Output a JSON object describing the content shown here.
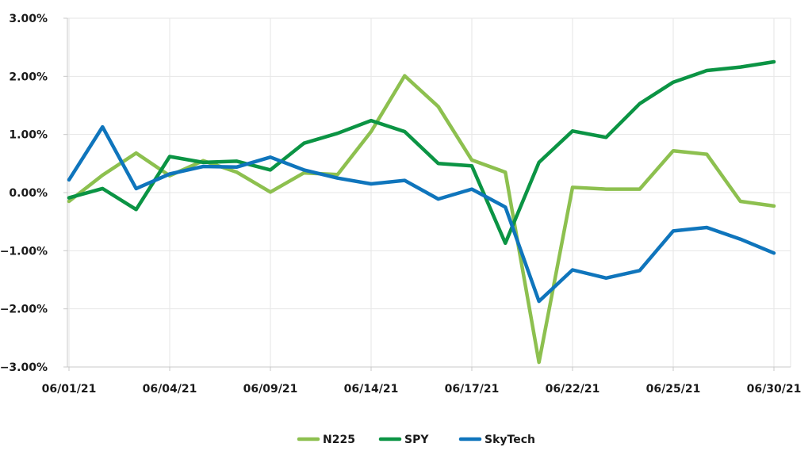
{
  "chart_data": {
    "type": "line",
    "title": "",
    "xlabel": "",
    "ylabel": "",
    "ylim": [
      -3.0,
      3.0
    ],
    "yticks": [
      3.0,
      2.0,
      1.0,
      0.0,
      -1.0,
      -2.0,
      -3.0
    ],
    "ytick_labels": [
      "3.00%",
      "2.00%",
      "1.00%",
      "0.00%",
      "−1.00%",
      "−2.00%",
      "−3.00%"
    ],
    "x_count": 22,
    "x_tick_positions": [
      0,
      3,
      6,
      9,
      12,
      15,
      18,
      21
    ],
    "x_tick_labels": [
      "06/01/21",
      "06/04/21",
      "06/09/21",
      "06/14/21",
      "06/17/21",
      "06/22/21",
      "06/25/21",
      "06/30/21"
    ],
    "grid": true,
    "legend_position": "bottom",
    "series": [
      {
        "name": "N225",
        "color": "#8dc04f",
        "values": [
          -0.15,
          0.3,
          0.68,
          0.29,
          0.55,
          0.35,
          0.01,
          0.34,
          0.31,
          1.05,
          2.01,
          1.48,
          0.56,
          0.35,
          -2.92,
          0.09,
          0.06,
          0.06,
          0.72,
          0.66,
          -0.15,
          -0.23
        ]
      },
      {
        "name": "SPY",
        "color": "#0b9444",
        "values": [
          -0.09,
          0.07,
          -0.29,
          0.62,
          0.52,
          0.54,
          0.39,
          0.85,
          1.02,
          1.24,
          1.05,
          0.5,
          0.46,
          -0.87,
          0.52,
          1.06,
          0.95,
          1.53,
          1.9,
          2.1,
          2.16,
          2.25
        ]
      },
      {
        "name": "SkyTech",
        "color": "#0f75bc",
        "values": [
          0.22,
          1.13,
          0.07,
          0.32,
          0.45,
          0.44,
          0.61,
          0.39,
          0.25,
          0.15,
          0.21,
          -0.11,
          0.06,
          -0.25,
          -1.87,
          -1.33,
          -1.47,
          -1.34,
          -0.66,
          -0.6,
          -0.8,
          -1.04
        ]
      }
    ]
  }
}
